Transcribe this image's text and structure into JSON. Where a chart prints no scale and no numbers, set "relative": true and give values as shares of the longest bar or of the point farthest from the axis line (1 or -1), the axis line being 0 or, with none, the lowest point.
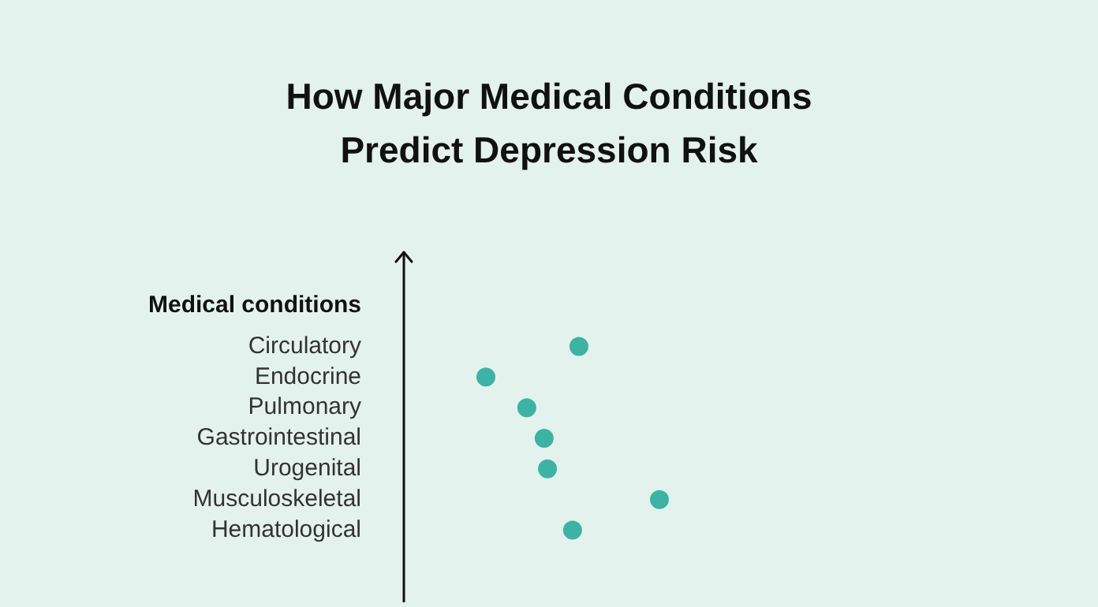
{
  "chart_data": {
    "type": "scatter",
    "orientation": "horizontal",
    "relative": true,
    "title": "How Major Medical Conditions Predict Depression Risk",
    "ylabel": "Medical conditions",
    "categories": [
      "Circulatory",
      "Endocrine",
      "Pulmonary",
      "Gastrointestinal",
      "Urogenital",
      "Musculoskeletal",
      "Hematological"
    ],
    "values": [
      0.685,
      0.321,
      0.481,
      0.549,
      0.562,
      1,
      0.66
    ],
    "color": "#3db3a5",
    "marker": "circle",
    "tick_labels": "y",
    "legend": false,
    "grid": false
  }
}
